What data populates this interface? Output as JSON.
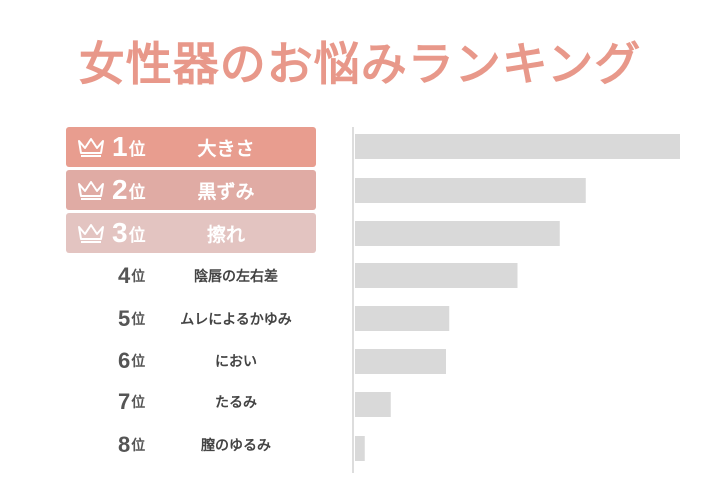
{
  "title": "女性器のお悩みランキング",
  "rank_suffix": "位",
  "colors": {
    "title": "#e8988a",
    "bar": "#d9d9d9",
    "rank1": "#e89d8f",
    "rank2": "#e0aba4",
    "rank3": "#e3c4c1"
  },
  "rankings": [
    {
      "rank": "1",
      "label": "大きさ",
      "crown": "crown-icon"
    },
    {
      "rank": "2",
      "label": "黒ずみ",
      "crown": "crown-icon"
    },
    {
      "rank": "3",
      "label": "擦れ",
      "crown": "crown-icon"
    },
    {
      "rank": "4",
      "label": "陰唇の左右差"
    },
    {
      "rank": "5",
      "label": "ムレによるかゆみ"
    },
    {
      "rank": "6",
      "label": "におい"
    },
    {
      "rank": "7",
      "label": "たるみ"
    },
    {
      "rank": "8",
      "label": "膣のゆるみ"
    }
  ],
  "chart_data": {
    "type": "bar",
    "orientation": "horizontal",
    "categories": [
      "大きさ",
      "黒ずみ",
      "擦れ",
      "陰唇の左右差",
      "ムレによるかゆみ",
      "におい",
      "たるみ",
      "膣のゆるみ"
    ],
    "values": [
      100,
      71,
      63,
      50,
      29,
      28,
      11,
      3
    ],
    "xlim": [
      0,
      100
    ],
    "grid": false,
    "axis_labels_shown": false
  }
}
